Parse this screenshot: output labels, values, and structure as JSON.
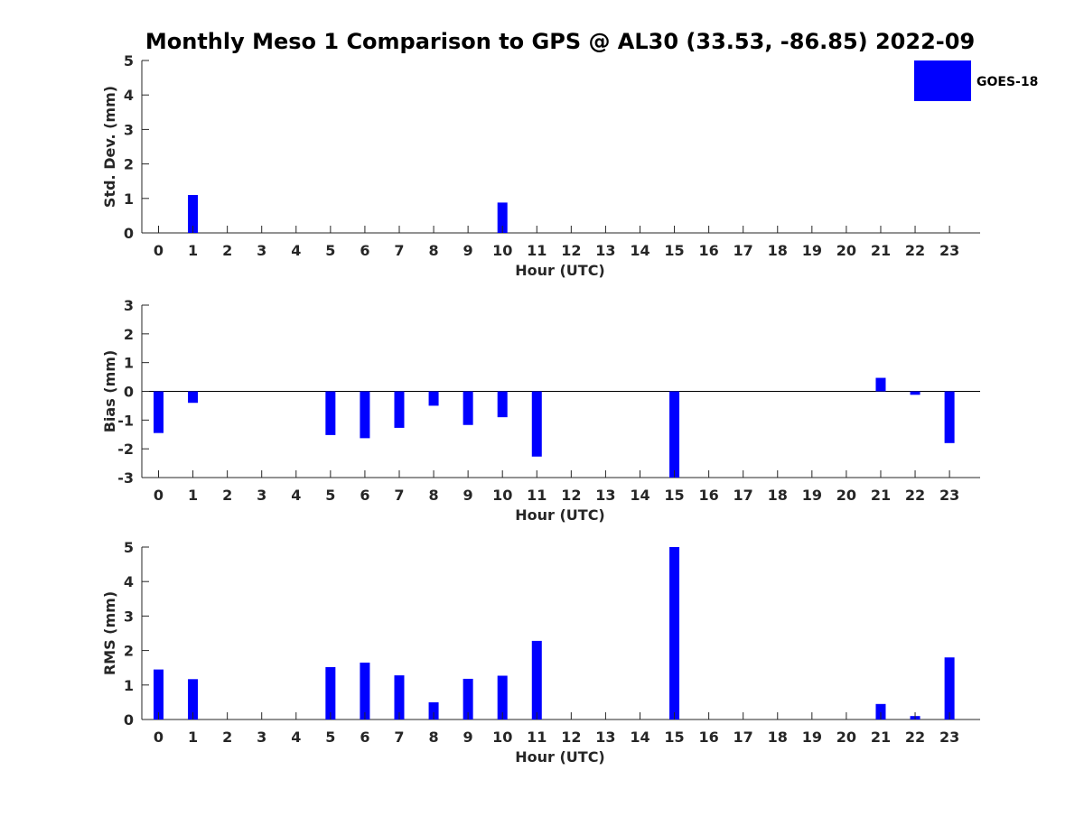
{
  "chart_data": {
    "type": "bar",
    "title": "Monthly Meso 1 Comparison to GPS @ AL30 (33.53, -86.85) 2022-09",
    "legend": {
      "label": "GOES-18",
      "placement": "top-right"
    },
    "colors": {
      "series": "#0000ff",
      "axis": "#262626",
      "zero_line": "#000000"
    },
    "categories": [
      "0",
      "1",
      "2",
      "3",
      "4",
      "5",
      "6",
      "7",
      "8",
      "9",
      "10",
      "11",
      "12",
      "13",
      "14",
      "15",
      "16",
      "17",
      "18",
      "19",
      "20",
      "21",
      "22",
      "23"
    ],
    "panels": [
      {
        "name": "std-dev",
        "ylabel": "Std. Dev. (mm)",
        "xlabel": "Hour (UTC)",
        "ylim": [
          0,
          5
        ],
        "yticks": [
          "0",
          "1",
          "2",
          "3",
          "4",
          "5"
        ],
        "zero_line": false,
        "values": [
          null,
          1.1,
          null,
          null,
          null,
          null,
          null,
          null,
          null,
          null,
          0.88,
          null,
          null,
          null,
          null,
          null,
          null,
          null,
          null,
          null,
          null,
          null,
          null,
          null
        ]
      },
      {
        "name": "bias",
        "ylabel": "Bias (mm)",
        "xlabel": "Hour (UTC)",
        "ylim": [
          -3,
          3
        ],
        "yticks": [
          "-3",
          "-2",
          "-1",
          "0",
          "1",
          "2",
          "3"
        ],
        "zero_line": true,
        "values": [
          -1.45,
          -0.4,
          null,
          null,
          null,
          -1.52,
          -1.63,
          -1.27,
          -0.5,
          -1.17,
          -0.9,
          -2.27,
          null,
          null,
          null,
          -3.0,
          null,
          null,
          null,
          null,
          null,
          0.47,
          -0.12,
          -1.8
        ]
      },
      {
        "name": "rms",
        "ylabel": "RMS (mm)",
        "xlabel": "Hour (UTC)",
        "ylim": [
          0,
          5
        ],
        "yticks": [
          "0",
          "1",
          "2",
          "3",
          "4",
          "5"
        ],
        "zero_line": false,
        "values": [
          1.45,
          1.17,
          null,
          null,
          null,
          1.52,
          1.65,
          1.28,
          0.5,
          1.18,
          1.27,
          2.28,
          null,
          null,
          null,
          5.0,
          null,
          null,
          null,
          null,
          null,
          0.45,
          0.1,
          1.8
        ]
      }
    ]
  }
}
